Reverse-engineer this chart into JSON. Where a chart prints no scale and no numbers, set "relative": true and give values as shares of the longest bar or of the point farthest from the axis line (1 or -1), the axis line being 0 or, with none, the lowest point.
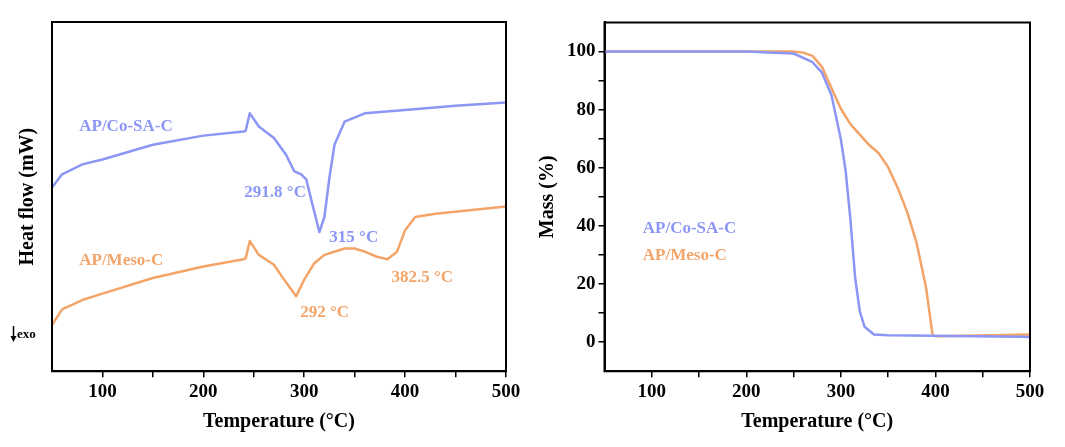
{
  "chart_data": [
    {
      "type": "line",
      "relative": true,
      "xlabel": "Temperature (°C)",
      "ylabel": "Heat flow (mW)",
      "xlim": [
        50,
        500
      ],
      "xticks": [
        100,
        {
          "value": 150,
          "label": null
        },
        200,
        {
          "value": 250,
          "label": null
        },
        300,
        {
          "value": 350,
          "label": null
        },
        400,
        {
          "value": 450,
          "label": null
        },
        500
      ],
      "legend": false,
      "series": [
        {
          "name": "AP/Co-SA-C",
          "color": "#8c96f5",
          "x": [
            50,
            60,
            80,
            100,
            150,
            200,
            240,
            242,
            246,
            255,
            270,
            282,
            290,
            297,
            302,
            308,
            315,
            320,
            325,
            330,
            340,
            360,
            400,
            450,
            500
          ],
          "values": [
            0.684,
            0.733,
            0.77,
            0.788,
            0.843,
            0.877,
            0.892,
            0.895,
            0.96,
            0.911,
            0.868,
            0.806,
            0.745,
            0.733,
            0.714,
            0.623,
            0.518,
            0.574,
            0.721,
            0.843,
            0.929,
            0.96,
            0.972,
            0.988,
            1.0
          ]
        },
        {
          "name": "AP/Meso-C",
          "color": "#f3a469",
          "x": [
            50,
            60,
            80,
            100,
            150,
            200,
            240,
            242,
            246,
            255,
            270,
            280,
            292,
            300,
            310,
            320,
            340,
            350,
            360,
            372,
            382.5,
            392,
            400,
            410,
            430,
            500
          ],
          "values": [
            0.172,
            0.23,
            0.265,
            0.289,
            0.347,
            0.39,
            0.417,
            0.42,
            0.485,
            0.433,
            0.396,
            0.341,
            0.279,
            0.341,
            0.402,
            0.433,
            0.457,
            0.457,
            0.445,
            0.426,
            0.417,
            0.445,
            0.525,
            0.574,
            0.586,
            0.613
          ]
        }
      ],
      "annotations": [
        {
          "text": "291.8 °C",
          "x": 291.8,
          "y": 0.745
        },
        {
          "text": "315 °C",
          "x": 315,
          "y": 0.518
        },
        {
          "text": "292 °C",
          "x": 292,
          "y": 0.279
        },
        {
          "text": "382.5 °C",
          "x": 382.5,
          "y": 0.417
        },
        "exo"
      ]
    },
    {
      "type": "line",
      "xlabel": "Temperature (°C)",
      "ylabel": "Mass (%)",
      "xlim": [
        50,
        500
      ],
      "ylim": [
        -10,
        110
      ],
      "xticks": [
        100,
        {
          "value": 150,
          "label": null
        },
        200,
        {
          "value": 250,
          "label": null
        },
        300,
        {
          "value": 350,
          "label": null
        },
        400,
        {
          "value": 450,
          "label": null
        },
        500
      ],
      "yticks": [
        0,
        {
          "value": 10,
          "label": null
        },
        20,
        {
          "value": 30,
          "label": null
        },
        40,
        {
          "value": 50,
          "label": null
        },
        60,
        {
          "value": 70,
          "label": null
        },
        80,
        {
          "value": 90,
          "label": null
        },
        100
      ],
      "legend": "left",
      "series": [
        {
          "name": "AP/Co-SA-C",
          "color": "#8c96f5",
          "x": [
            50,
            200,
            250,
            270,
            280,
            290,
            300,
            305,
            310,
            315,
            320,
            325,
            335,
            350,
            500
          ],
          "values": [
            100,
            100,
            99.3,
            96.3,
            92.7,
            85,
            69.7,
            59,
            42.5,
            22.4,
            10.6,
            5.3,
            2.6,
            2.4,
            1.8
          ]
        },
        {
          "name": "AP/Meso-C",
          "color": "#f3a469",
          "x": [
            50,
            250,
            260,
            270,
            280,
            290,
            300,
            310,
            320,
            330,
            340,
            350,
            360,
            370,
            380,
            390,
            397,
            400,
            500
          ],
          "values": [
            100,
            100,
            99.6,
            98.5,
            94.7,
            87.4,
            80.3,
            75,
            71.4,
            67.8,
            65,
            60.2,
            53.1,
            44.9,
            34.2,
            18.9,
            2.4,
            2,
            2.6
          ]
        }
      ]
    }
  ]
}
